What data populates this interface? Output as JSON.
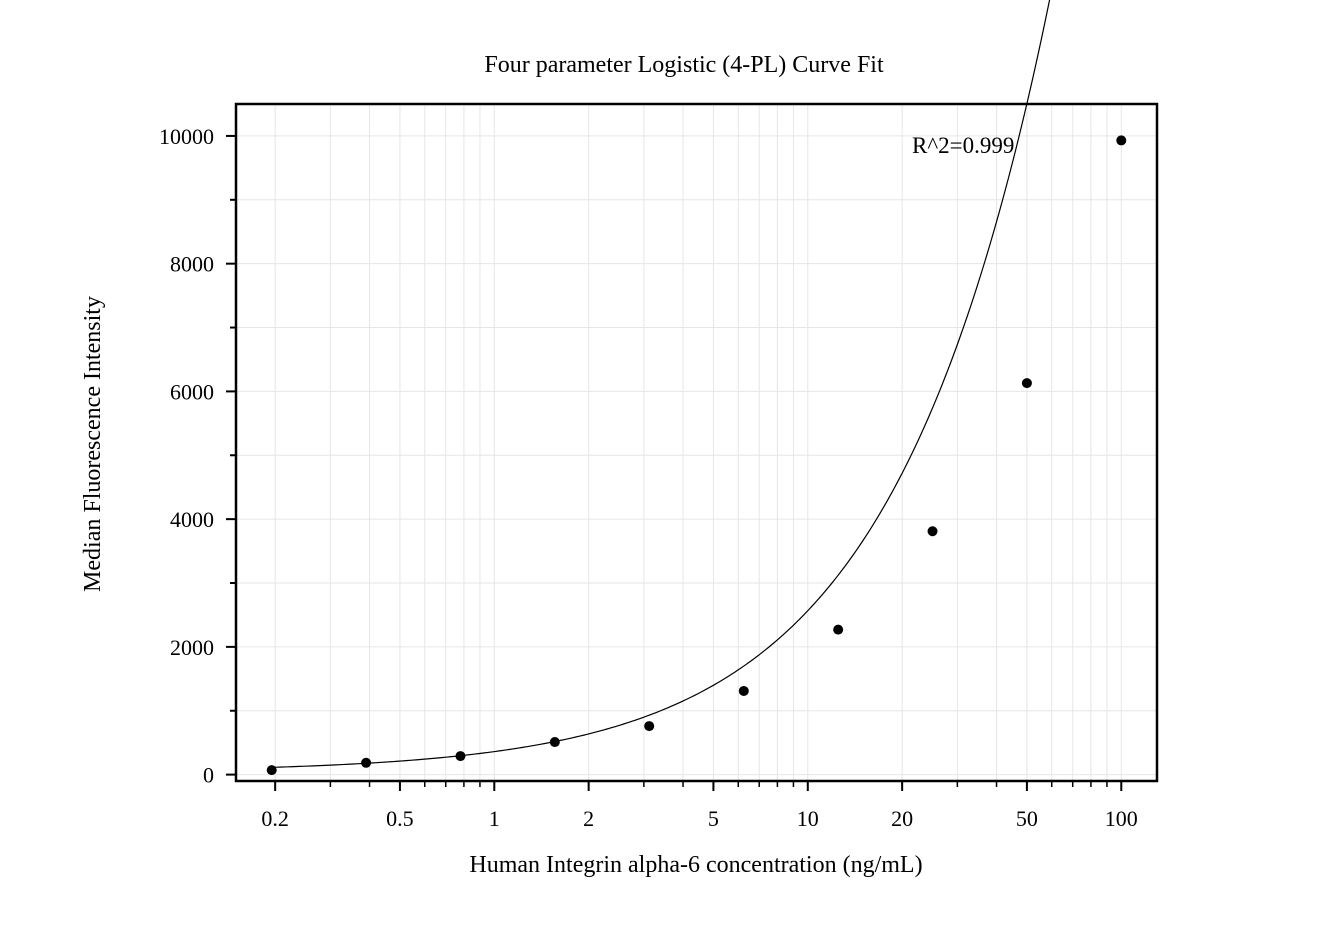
{
  "chart_data": {
    "type": "scatter",
    "title": "Four parameter Logistic (4-PL) Curve Fit",
    "xlabel": "Human Integrin alpha-6 concentration (ng/mL)",
    "ylabel": "Median Fluorescence Intensity",
    "x_scale": "log",
    "xlim": [
      0.15,
      130
    ],
    "ylim": [
      -100,
      10500
    ],
    "x_ticks": [
      0.2,
      0.5,
      1,
      2,
      5,
      10,
      20,
      50,
      100
    ],
    "x_tick_labels": [
      "0.2",
      "0.5",
      "1",
      "2",
      "5",
      "10",
      "20",
      "50",
      "100"
    ],
    "y_ticks": [
      0,
      2000,
      4000,
      6000,
      8000,
      10000
    ],
    "y_tick_labels": [
      "0",
      "2000",
      "4000",
      "6000",
      "8000",
      "10000"
    ],
    "grid": true,
    "annotation": "R^2=0.999",
    "series": [
      {
        "type": "scatter",
        "x": [
          0.195,
          0.39,
          0.78,
          1.56,
          3.12,
          6.25,
          12.5,
          25,
          50,
          100
        ],
        "y": [
          70,
          185,
          290,
          510,
          760,
          1310,
          2270,
          3810,
          6130,
          9930
        ]
      },
      {
        "type": "line",
        "fit": "4PL",
        "params": {
          "A": 40,
          "B": 0.9,
          "C": 2000,
          "D": 300000
        }
      }
    ],
    "colors": {
      "points": "#000000",
      "curve": "#000000",
      "grid": "#e6e6e6"
    }
  }
}
